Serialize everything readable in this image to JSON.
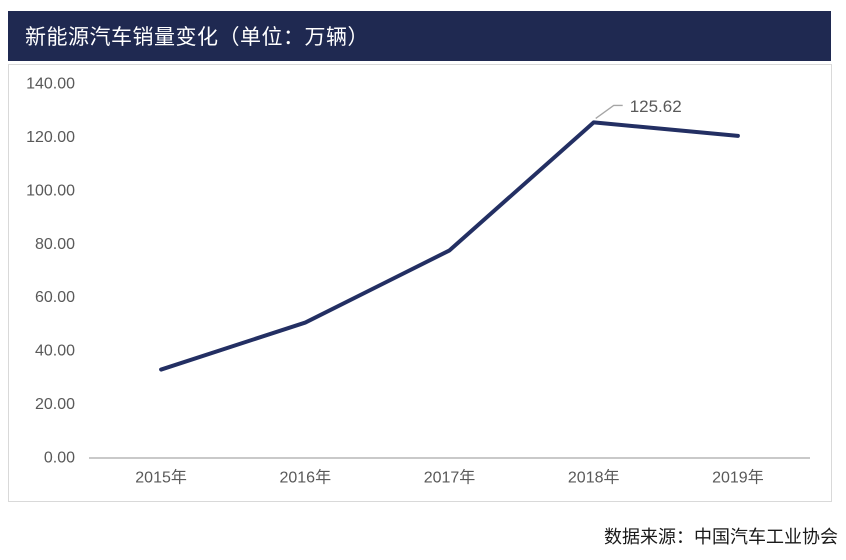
{
  "header": {
    "title": "新能源汽车销量变化（单位：万辆）"
  },
  "source_note": "数据来源：中国汽车工业协会",
  "colors": {
    "title_bar_bg": "#1F2951",
    "line": "#232F63",
    "axis_text": "#595959",
    "box_border": "#D9D9D9",
    "axis_line": "#C9C9C9",
    "leader_line": "#A6A6A6",
    "data_label_text": "#595959",
    "source_text": "#1A1A1A"
  },
  "chart_data": {
    "type": "line",
    "title": "新能源汽车销量变化（单位：万辆）",
    "categories": [
      "2015年",
      "2016年",
      "2017年",
      "2018年",
      "2019年"
    ],
    "series": [
      {
        "name": "新能源汽车销量",
        "values": [
          33.11,
          50.7,
          77.7,
          125.62,
          120.6
        ]
      }
    ],
    "xlabel": "",
    "ylabel": "",
    "ylim": [
      0,
      140
    ],
    "y_tick_step": 20,
    "y_tick_labels": [
      "0.00",
      "20.00",
      "40.00",
      "60.00",
      "80.00",
      "100.00",
      "120.00",
      "140.00"
    ],
    "x_tick_labels": [
      "2015年",
      "2016年",
      "2017年",
      "2018年",
      "2019年"
    ],
    "grid": false,
    "legend_position": "none",
    "data_labels": [
      {
        "category_index": 3,
        "text": "125.62"
      }
    ]
  }
}
